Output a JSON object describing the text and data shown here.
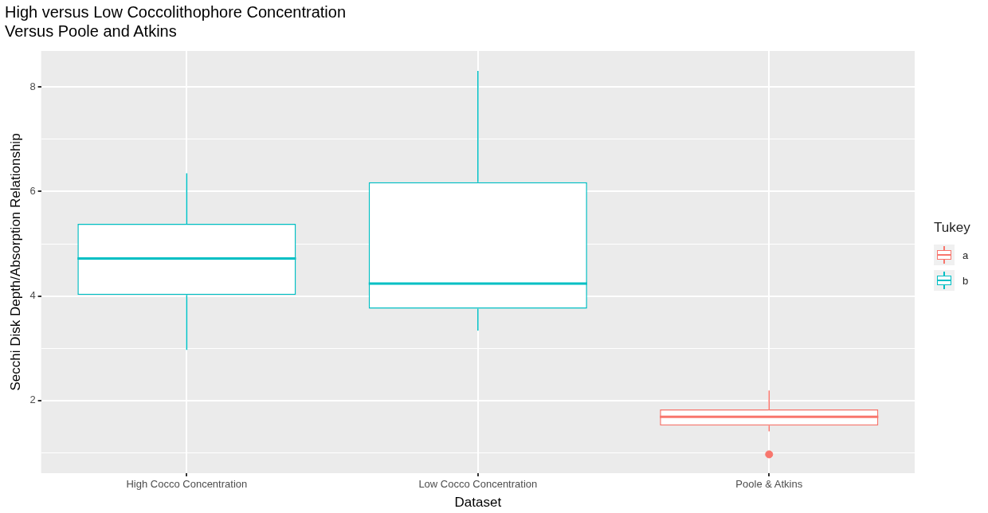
{
  "chart_data": {
    "type": "box",
    "title": "High versus Low Coccolithophore Concentration\nVersus Poole and Atkins",
    "xlabel": "Dataset",
    "ylabel": "Secchi Disk Depth/Absorption Relationship",
    "legend_title": "Tukey",
    "legend": "right",
    "grid": true,
    "categories": [
      "High Cocco Concentration",
      "Low Cocco Concentration",
      "Poole & Atkins"
    ],
    "ylim": [
      0.61,
      8.69
    ],
    "yticks": [
      {
        "value": 1,
        "label": null
      },
      2,
      {
        "value": 3,
        "label": null
      },
      4,
      {
        "value": 5,
        "label": null
      },
      6,
      {
        "value": 7,
        "label": null
      },
      8
    ],
    "series": [
      {
        "name": "a",
        "color": "#f8766d",
        "boxes": [
          null,
          null,
          {
            "low": 1.41,
            "q1": 1.52,
            "median": 1.69,
            "q3": 1.83,
            "high": 2.19,
            "outliers": [
              0.97
            ]
          }
        ]
      },
      {
        "name": "b",
        "color": "#00bfc4",
        "boxes": [
          {
            "low": 2.97,
            "q1": 4.02,
            "median": 4.72,
            "q3": 5.38,
            "high": 6.35
          },
          {
            "low": 3.34,
            "q1": 3.76,
            "median": 4.24,
            "q3": 6.18,
            "high": 8.31
          },
          null
        ]
      }
    ]
  }
}
